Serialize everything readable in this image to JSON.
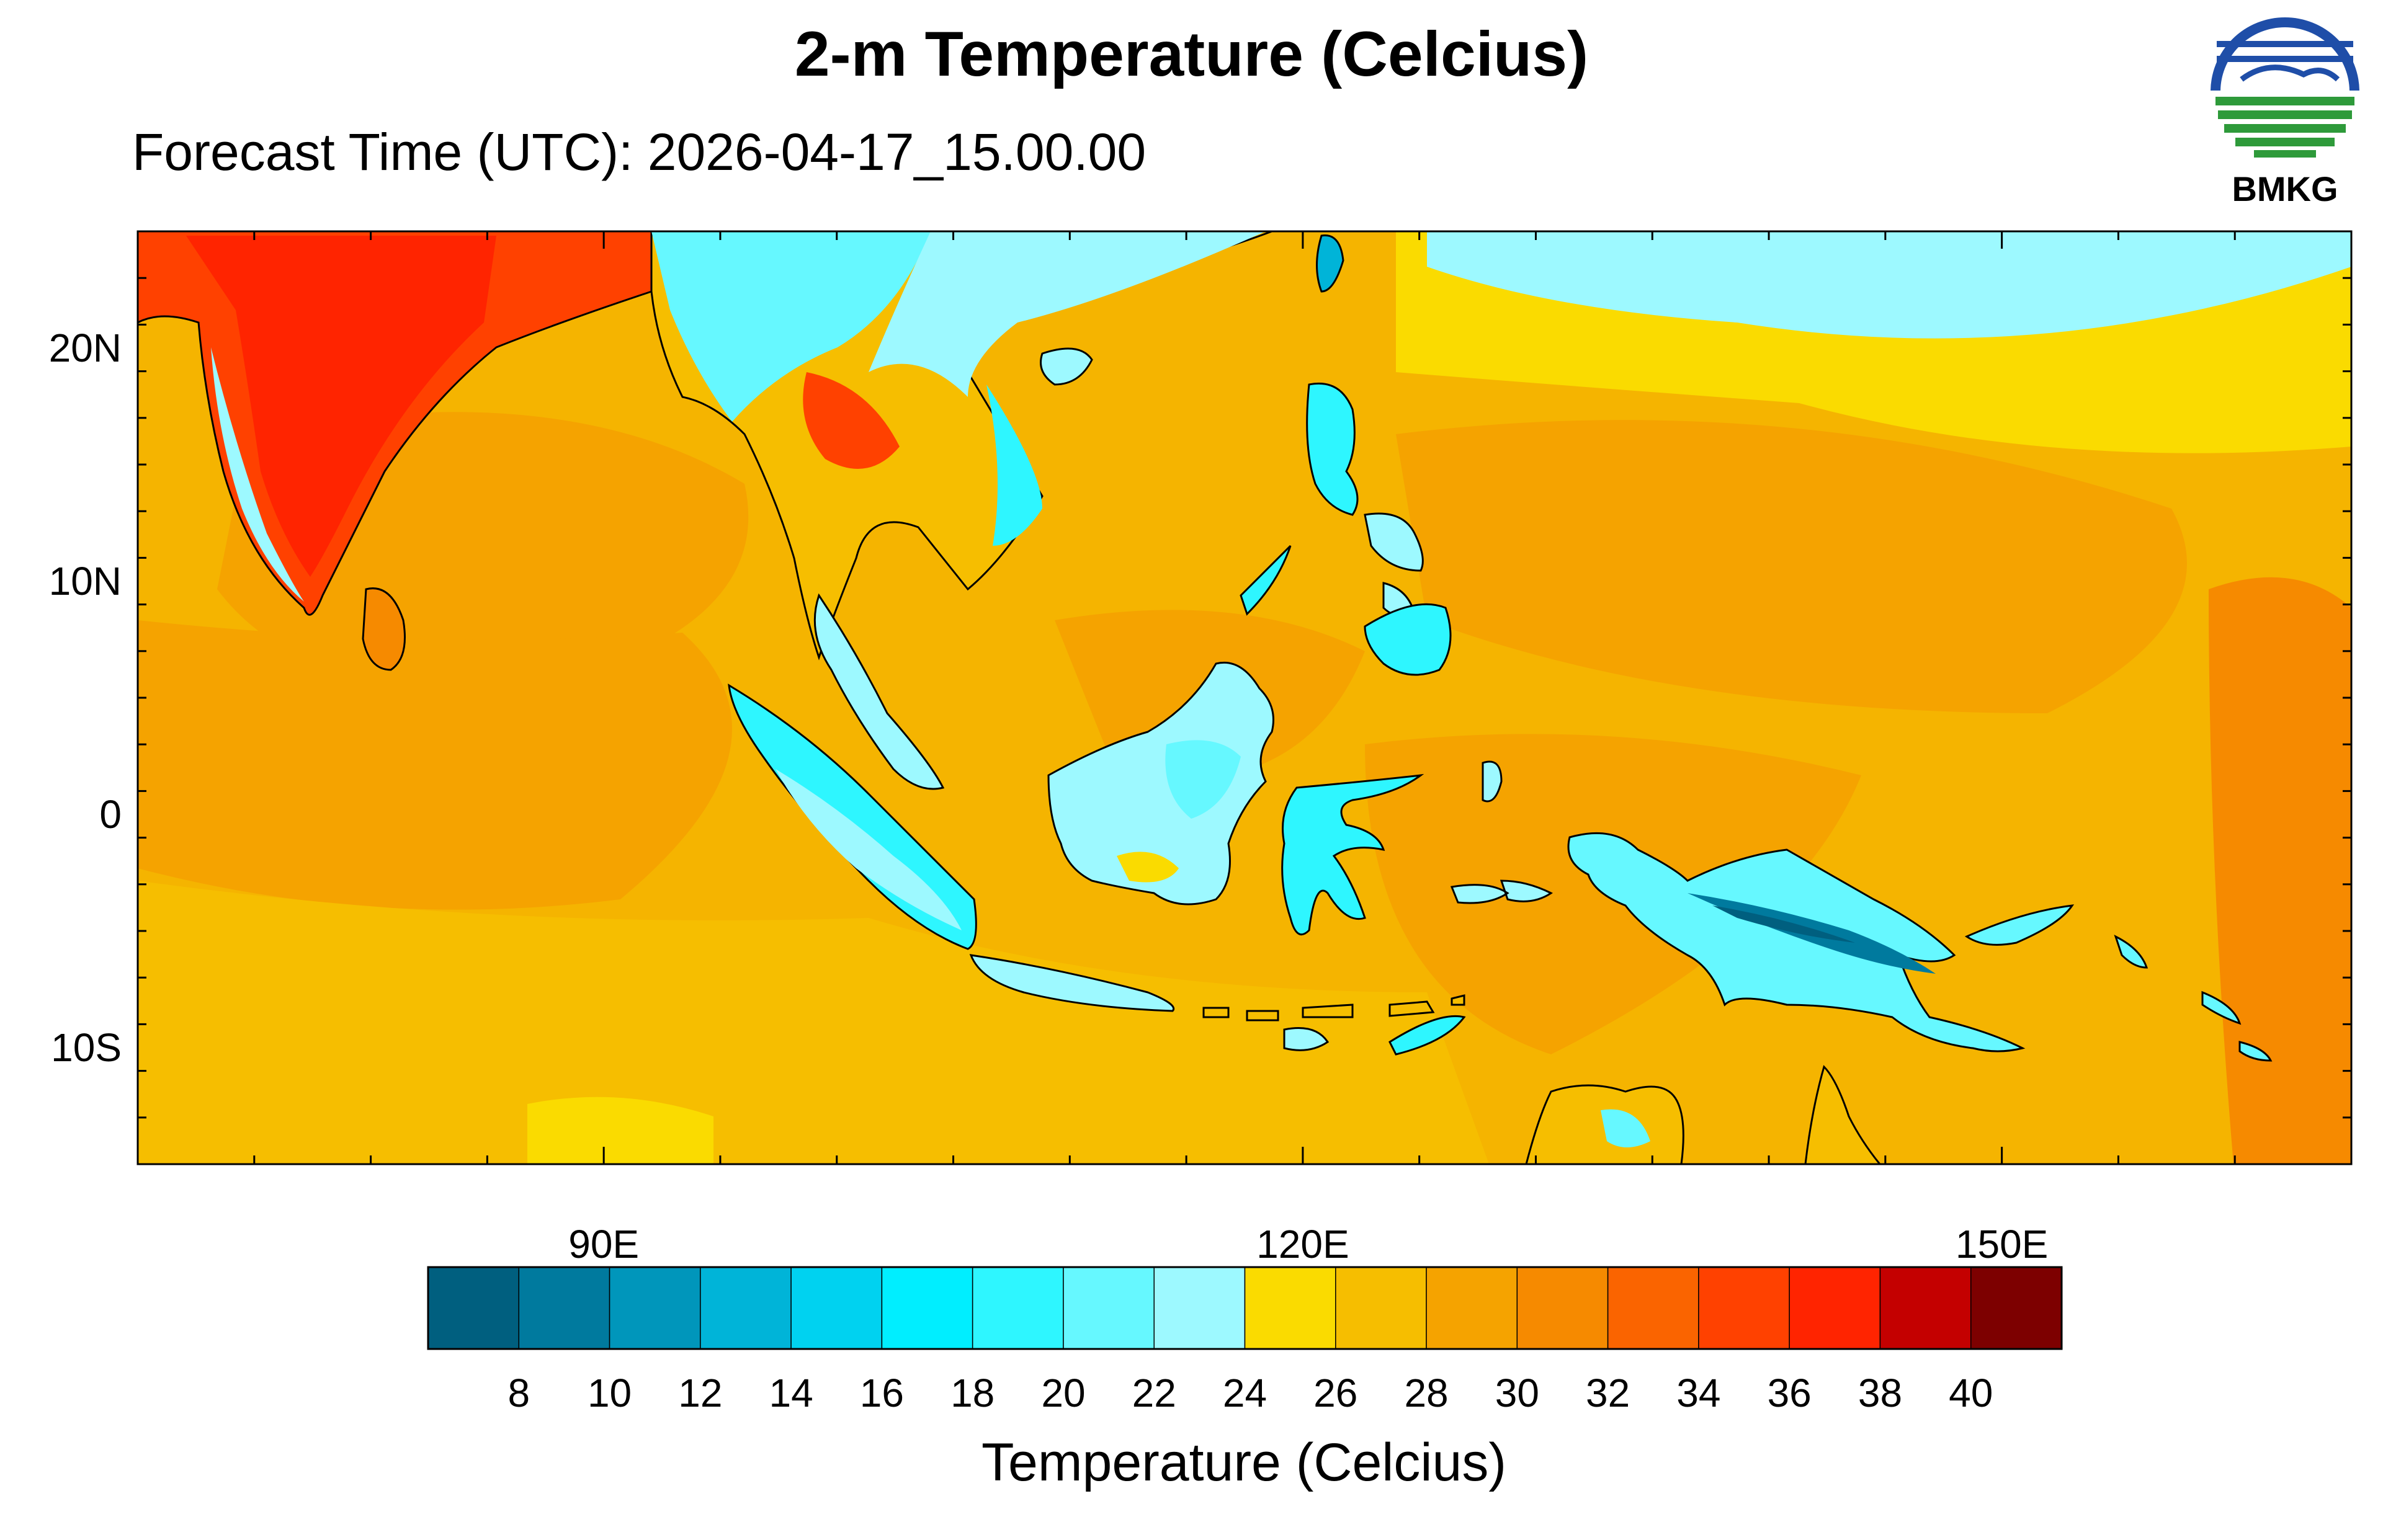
{
  "title": "2-m Temperature (Celcius)",
  "subtitle": "Forecast Time (UTC): 2026-04-17_15.00.00",
  "logo": {
    "text": "BMKG",
    "colors": [
      "#1f4ea8",
      "#2e9a3a"
    ]
  },
  "map": {
    "lon_range": [
      70,
      165
    ],
    "lat_range": [
      -15,
      25
    ],
    "lat_ticks": [
      {
        "value": 20,
        "label": "20N"
      },
      {
        "value": 10,
        "label": "10N"
      },
      {
        "value": 0,
        "label": "0"
      },
      {
        "value": -10,
        "label": "10S"
      }
    ],
    "lon_ticks": [
      {
        "value": 90,
        "label": "90E"
      },
      {
        "value": 120,
        "label": "120E"
      },
      {
        "value": 150,
        "label": "150E"
      }
    ],
    "ocean_background": "#f5b400"
  },
  "colorbar": {
    "title": "Temperature (Celcius)",
    "levels": [
      "8",
      "10",
      "12",
      "14",
      "16",
      "18",
      "20",
      "22",
      "24",
      "26",
      "28",
      "30",
      "32",
      "34",
      "36",
      "38",
      "40"
    ],
    "colors": [
      "#005f7f",
      "#007a9e",
      "#0096bb",
      "#00b4d8",
      "#00d2f0",
      "#00eeff",
      "#2ef6ff",
      "#66f8ff",
      "#9df9ff",
      "#fadb00",
      "#f6be00",
      "#f5a300",
      "#f68a00",
      "#fa6400",
      "#ff4100",
      "#ff2400",
      "#c40000",
      "#7d0000"
    ]
  }
}
